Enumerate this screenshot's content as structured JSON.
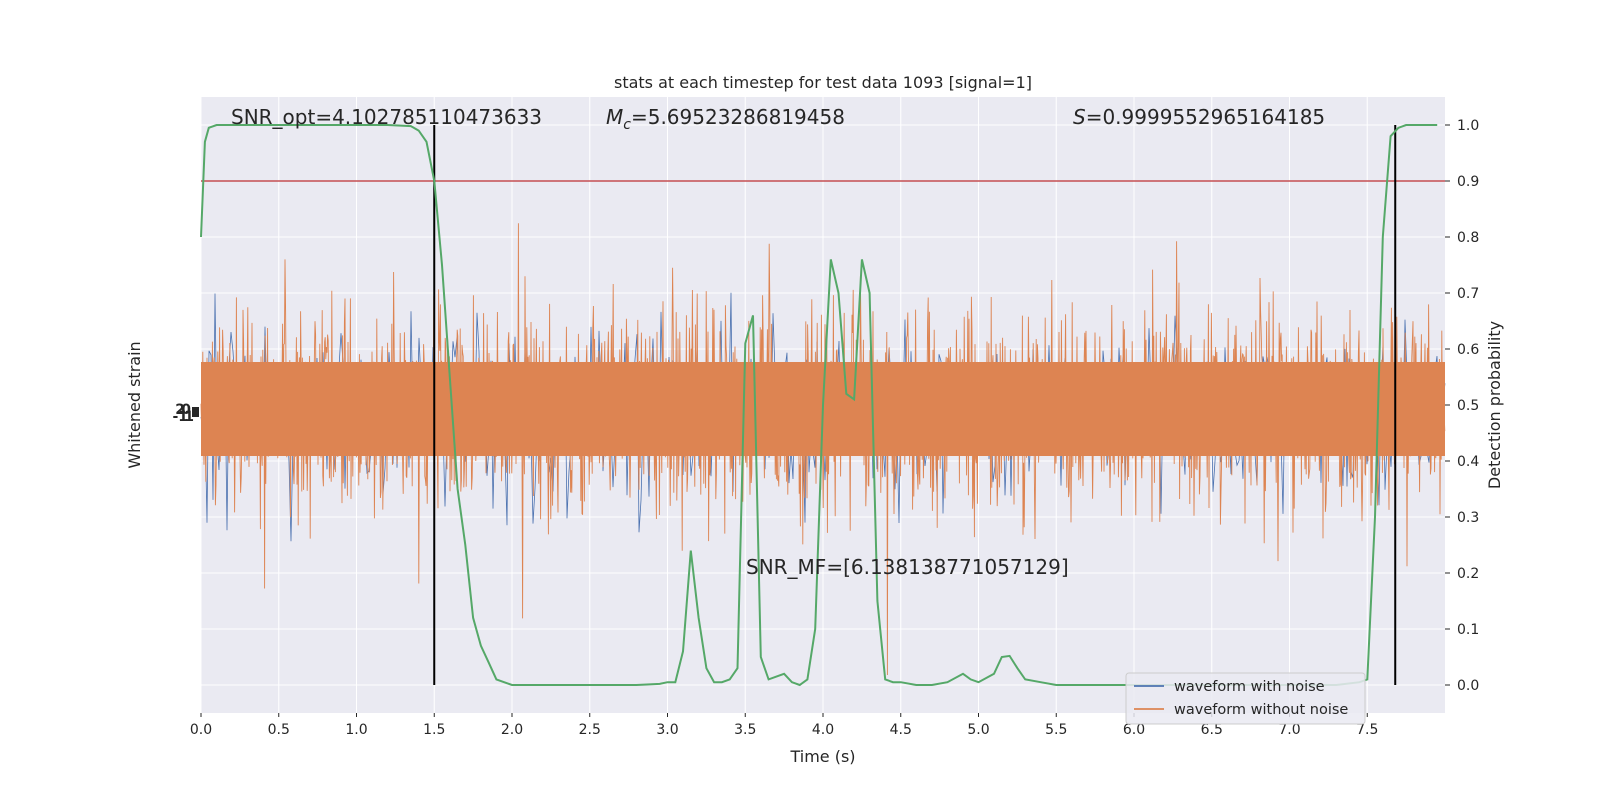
{
  "chart_data": {
    "type": "line",
    "title": "stats at each timestep for test data 1093 [signal=1]",
    "xlabel": "Time (s)",
    "ylabel": "Whitened strain",
    "y2label": "Detection probability",
    "xlim": [
      0,
      8.0
    ],
    "y2lim": [
      -0.05,
      1.05
    ],
    "x_ticks": [
      0.0,
      0.5,
      1.0,
      1.5,
      2.0,
      2.5,
      3.0,
      3.5,
      4.0,
      4.5,
      5.0,
      5.5,
      6.0,
      6.5,
      7.0,
      7.5
    ],
    "x_tick_labels": [
      "0.0",
      "0.5",
      "1.0",
      "1.5",
      "2.0",
      "2.5",
      "3.0",
      "3.5",
      "4.0",
      "4.5",
      "5.0",
      "5.5",
      "6.0",
      "6.5",
      "7.0",
      "7.5"
    ],
    "y2_ticks": [
      0.0,
      0.1,
      0.2,
      0.3,
      0.4,
      0.5,
      0.6,
      0.7,
      0.8,
      0.9,
      1.0
    ],
    "y2_tick_labels": [
      "0.0",
      "0.1",
      "0.2",
      "0.3",
      "0.4",
      "0.5",
      "0.6",
      "0.7",
      "0.8",
      "0.9",
      "1.0"
    ],
    "grid": true,
    "legend_position": "lower-right",
    "threshold": 0.9,
    "vertical_lines": [
      1.5,
      7.68
    ],
    "annotations": {
      "snr_opt": "SNR_opt=4.102785110473633",
      "mc_symbol": "M",
      "mc_subscript": "c",
      "mc_value": "=5.69523286819458",
      "s_symbol": "S",
      "s_value": "=0.9999552965164185",
      "snr_mf": "SNR_MF=[6.138138771057129]"
    },
    "series": [
      {
        "name": "waveform with noise",
        "color": "#4c72b0",
        "kind": "strain"
      },
      {
        "name": "waveform without noise",
        "color": "#dd8452",
        "kind": "strain"
      },
      {
        "name": "",
        "color": "#55a868",
        "kind": "detection_probability",
        "x": [
          0.0,
          0.025,
          0.05,
          0.1,
          0.2,
          0.4,
          0.6,
          0.8,
          1.0,
          1.2,
          1.35,
          1.4,
          1.45,
          1.5,
          1.55,
          1.6,
          1.65,
          1.7,
          1.75,
          1.8,
          1.85,
          1.9,
          2.0,
          2.2,
          2.4,
          2.6,
          2.8,
          2.95,
          3.0,
          3.05,
          3.1,
          3.15,
          3.2,
          3.25,
          3.3,
          3.35,
          3.4,
          3.45,
          3.5,
          3.55,
          3.6,
          3.65,
          3.7,
          3.75,
          3.8,
          3.85,
          3.9,
          3.95,
          4.0,
          4.05,
          4.1,
          4.15,
          4.2,
          4.25,
          4.3,
          4.35,
          4.4,
          4.45,
          4.5,
          4.6,
          4.7,
          4.8,
          4.9,
          4.95,
          5.0,
          5.1,
          5.15,
          5.2,
          5.25,
          5.3,
          5.4,
          5.5,
          5.6,
          5.8,
          6.0,
          6.5,
          7.0,
          7.3,
          7.45,
          7.5,
          7.55,
          7.6,
          7.65,
          7.7,
          7.75,
          7.8,
          7.85,
          7.9,
          7.95
        ],
        "values": [
          0.8,
          0.97,
          0.995,
          1.0,
          1.0,
          1.0,
          1.0,
          1.0,
          1.0,
          1.0,
          0.998,
          0.99,
          0.97,
          0.9,
          0.75,
          0.55,
          0.35,
          0.25,
          0.12,
          0.07,
          0.04,
          0.01,
          0.0,
          0.0,
          0.0,
          0.0,
          0.0,
          0.002,
          0.005,
          0.005,
          0.06,
          0.24,
          0.12,
          0.03,
          0.005,
          0.005,
          0.01,
          0.03,
          0.61,
          0.66,
          0.05,
          0.01,
          0.015,
          0.02,
          0.005,
          0.0,
          0.01,
          0.1,
          0.5,
          0.76,
          0.7,
          0.52,
          0.51,
          0.76,
          0.7,
          0.15,
          0.01,
          0.005,
          0.005,
          0.0,
          0.0,
          0.005,
          0.02,
          0.01,
          0.005,
          0.02,
          0.05,
          0.052,
          0.03,
          0.01,
          0.005,
          0.0,
          0.0,
          0.0,
          0.0,
          0.0,
          0.0,
          0.0,
          0.005,
          0.01,
          0.3,
          0.8,
          0.98,
          0.995,
          1.0,
          1.0,
          1.0,
          1.0,
          1.0
        ]
      }
    ]
  }
}
